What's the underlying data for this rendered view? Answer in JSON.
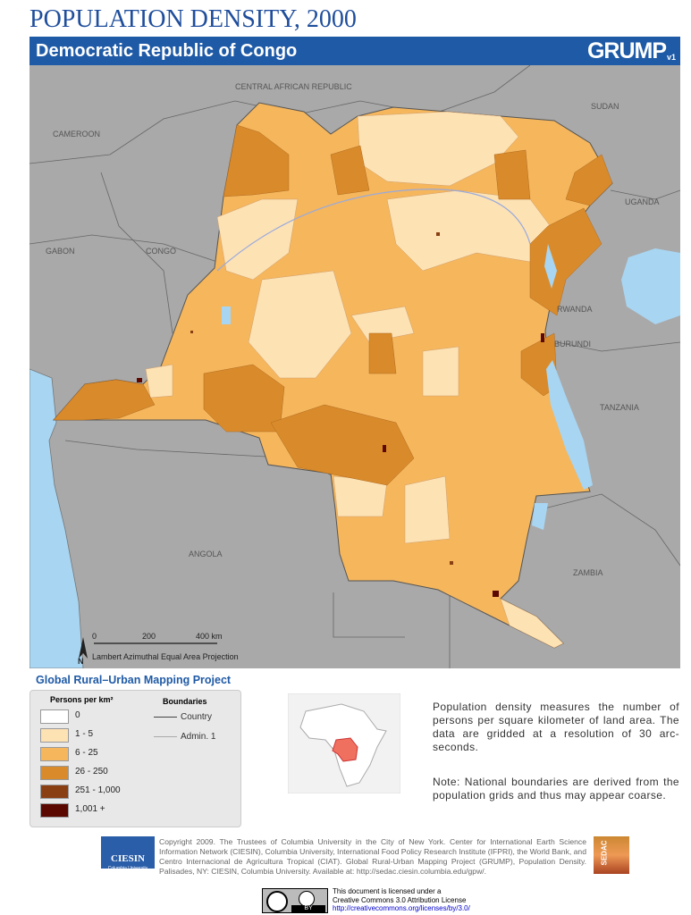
{
  "header": {
    "title": "POPULATION DENSITY, 2000",
    "banner": "Democratic Republic of Congo",
    "logo": "GRUMP",
    "logo_version": "v1"
  },
  "map": {
    "labels": [
      "CENTRAL AFRICAN REPUBLIC",
      "SUDAN",
      "CAMEROON",
      "UGANDA",
      "GABON",
      "CONGO",
      "RWANDA",
      "BURUNDI",
      "TANZANIA",
      "ANGOLA",
      "ZAMBIA"
    ],
    "north": "N",
    "scale": [
      "0",
      "200",
      "400 km"
    ],
    "projection": "Lambert Azimuthal Equal Area Projection"
  },
  "legend": {
    "project": "Global Rural–Urban Mapping Project",
    "density_title": "Persons per km²",
    "classes": [
      {
        "label": "0",
        "color": "#ffffff"
      },
      {
        "label": "1 - 5",
        "color": "#fde2b4"
      },
      {
        "label": "6 - 25",
        "color": "#f5b65c"
      },
      {
        "label": "26 - 250",
        "color": "#d98b2b"
      },
      {
        "label": "251 - 1,000",
        "color": "#8a3f12"
      },
      {
        "label": "1,001 +",
        "color": "#5a0800"
      }
    ],
    "boundaries_title": "Boundaries",
    "boundaries": [
      "Country",
      "Admin. 1"
    ]
  },
  "description": [
    "Population density measures the number of persons per square kilometer of land area. The data are gridded at a resolution of 30 arc-seconds.",
    "Note: National boundaries are derived from the population grids and thus may appear coarse."
  ],
  "footer": {
    "ciesin": "CIESIN",
    "ciesin_sub": "Columbia University",
    "copyright": "Copyright 2009. The Trustees of Columbia University in the City of New York. Center for International Earth Science Information Network (CIESIN), Columbia University, International Food Policy Research Institute (IFPRI), the World Bank, and Centro Internacional de Agricultura Tropical (CIAT). Global Rural-Urban Mapping Project (GRUMP), Population Density. Palisades, NY: CIESIN, Columbia University. Available at: http://sedac.ciesin.columbia.edu/gpw/.",
    "sedac": "SEDAC",
    "cc_by": "BY",
    "license": [
      "This document is licensed under a",
      "Creative Commons 3.0 Attribution License",
      "http://creativecommons.org/licenses/by/3.0/"
    ]
  }
}
